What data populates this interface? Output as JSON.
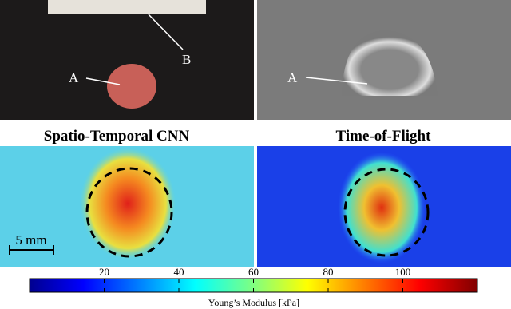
{
  "panels": {
    "photo": {
      "labels": [
        "A",
        "B"
      ]
    },
    "ultrasound": {
      "labels": [
        "A"
      ]
    },
    "cnn": {
      "title": "Spatio-Temporal CNN",
      "scale_bar": "5 mm"
    },
    "tof": {
      "title": "Time-of-Flight"
    }
  },
  "colorbar": {
    "label": "Young’s Modulus [kPa]",
    "lim": [
      0,
      120
    ],
    "ticks": [
      20,
      40,
      60,
      80,
      100
    ]
  }
}
